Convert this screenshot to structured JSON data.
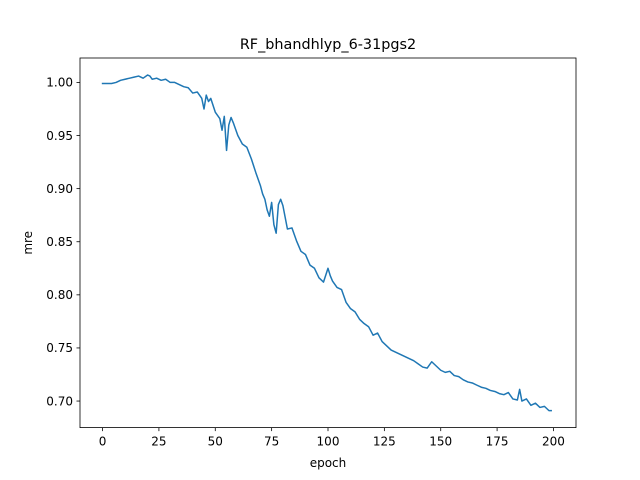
{
  "chart_data": {
    "type": "line",
    "title": "RF_bhandhlyp_6-31pgs2",
    "xlabel": "epoch",
    "ylabel": "mre",
    "xlim": [
      -10,
      210
    ],
    "ylim": [
      0.675,
      1.023
    ],
    "xticks": [
      0,
      25,
      50,
      75,
      100,
      125,
      150,
      175,
      200
    ],
    "xtick_labels": [
      "0",
      "25",
      "50",
      "75",
      "100",
      "125",
      "150",
      "175",
      "200"
    ],
    "yticks": [
      0.7,
      0.75,
      0.8,
      0.85,
      0.9,
      0.95,
      1.0
    ],
    "ytick_labels": [
      "0.70",
      "0.75",
      "0.80",
      "0.85",
      "0.90",
      "0.95",
      "1.00"
    ],
    "grid": false,
    "series": [
      {
        "color": "#1f77b4",
        "x": [
          0,
          2,
          4,
          6,
          8,
          10,
          12,
          14,
          16,
          18,
          20,
          21,
          22,
          24,
          26,
          28,
          30,
          32,
          34,
          36,
          38,
          40,
          42,
          44,
          45,
          46,
          47,
          48,
          50,
          52,
          53,
          54,
          55,
          56,
          57,
          58,
          60,
          62,
          64,
          66,
          68,
          70,
          71,
          72,
          73,
          74,
          75,
          76,
          77,
          78,
          79,
          80,
          82,
          84,
          86,
          88,
          90,
          92,
          94,
          96,
          98,
          100,
          101,
          102,
          104,
          106,
          108,
          110,
          112,
          114,
          116,
          118,
          120,
          122,
          124,
          126,
          128,
          130,
          132,
          134,
          136,
          138,
          140,
          142,
          144,
          146,
          148,
          150,
          152,
          154,
          156,
          158,
          160,
          162,
          164,
          166,
          168,
          170,
          172,
          174,
          176,
          178,
          180,
          182,
          184,
          185,
          186,
          188,
          190,
          192,
          194,
          196,
          198,
          199
        ],
        "y": [
          0.999,
          0.999,
          0.999,
          1.0,
          1.002,
          1.003,
          1.004,
          1.005,
          1.006,
          1.004,
          1.007,
          1.006,
          1.003,
          1.004,
          1.002,
          1.003,
          1.0,
          1.0,
          0.998,
          0.996,
          0.995,
          0.99,
          0.991,
          0.985,
          0.975,
          0.988,
          0.982,
          0.985,
          0.972,
          0.966,
          0.955,
          0.968,
          0.936,
          0.96,
          0.967,
          0.962,
          0.95,
          0.942,
          0.939,
          0.928,
          0.915,
          0.903,
          0.895,
          0.89,
          0.88,
          0.874,
          0.887,
          0.866,
          0.858,
          0.885,
          0.89,
          0.884,
          0.862,
          0.863,
          0.851,
          0.841,
          0.838,
          0.828,
          0.825,
          0.816,
          0.812,
          0.825,
          0.818,
          0.813,
          0.807,
          0.805,
          0.793,
          0.787,
          0.784,
          0.777,
          0.773,
          0.77,
          0.762,
          0.764,
          0.756,
          0.752,
          0.748,
          0.746,
          0.744,
          0.742,
          0.74,
          0.738,
          0.735,
          0.732,
          0.731,
          0.737,
          0.733,
          0.729,
          0.727,
          0.728,
          0.724,
          0.723,
          0.72,
          0.718,
          0.717,
          0.715,
          0.713,
          0.712,
          0.71,
          0.709,
          0.707,
          0.706,
          0.708,
          0.702,
          0.701,
          0.711,
          0.7,
          0.702,
          0.696,
          0.698,
          0.694,
          0.695,
          0.691,
          0.691
        ]
      }
    ]
  }
}
